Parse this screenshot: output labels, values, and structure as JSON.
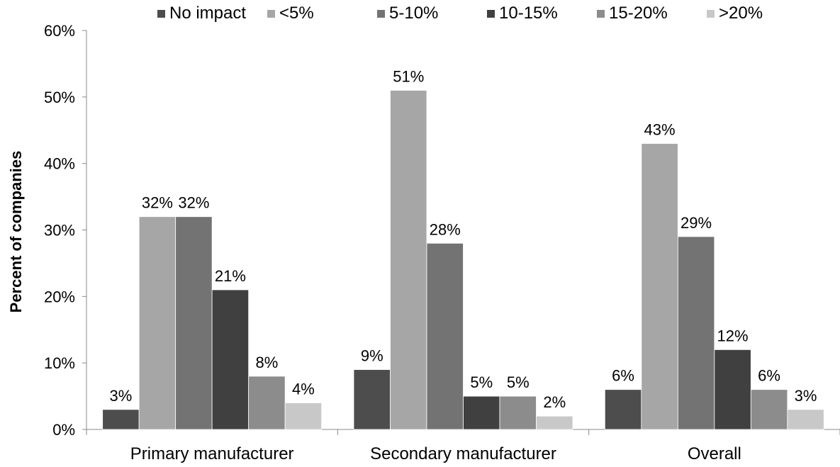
{
  "chart_data": {
    "type": "bar",
    "title": "",
    "xlabel": "",
    "ylabel": "Percent of companies",
    "ylim": [
      0,
      60
    ],
    "yticks": [
      "0%",
      "10%",
      "20%",
      "30%",
      "40%",
      "50%",
      "60%"
    ],
    "grid": false,
    "legend_position": "top",
    "categories": [
      "Primary manufacturer",
      "Secondary manufacturer",
      "Overall"
    ],
    "series": [
      {
        "name": "No impact",
        "color": "#4d4d4d",
        "values": [
          3,
          9,
          6
        ],
        "labels": [
          "3%",
          "9%",
          "6%"
        ]
      },
      {
        "name": "<5%",
        "color": "#a6a6a6",
        "values": [
          32,
          51,
          43
        ],
        "labels": [
          "32%",
          "51%",
          "43%"
        ]
      },
      {
        "name": "5-10%",
        "color": "#737373",
        "values": [
          32,
          28,
          29
        ],
        "labels": [
          "32%",
          "28%",
          "29%"
        ]
      },
      {
        "name": "10-15%",
        "color": "#404040",
        "values": [
          21,
          5,
          12
        ],
        "labels": [
          "21%",
          "5%",
          "12%"
        ]
      },
      {
        "name": "15-20%",
        "color": "#8c8c8c",
        "values": [
          8,
          5,
          6
        ],
        "labels": [
          "8%",
          "5%",
          "6%"
        ]
      },
      {
        "name": ">20%",
        "color": "#c8c8c8",
        "values": [
          4,
          2,
          3
        ],
        "labels": [
          "4%",
          "2%",
          "3%"
        ]
      }
    ]
  }
}
